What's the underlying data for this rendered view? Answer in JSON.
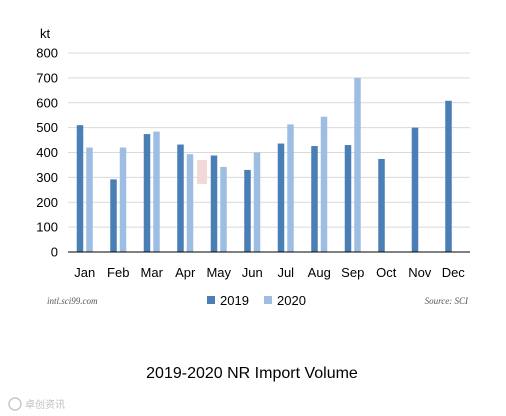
{
  "chart_data": {
    "type": "bar",
    "title": "",
    "caption": "2019-2020 NR Import Volume",
    "unit_label": "kt",
    "xlabel": "",
    "ylabel": "",
    "ylim": [
      0,
      800
    ],
    "yticks": [
      0,
      100,
      200,
      300,
      400,
      500,
      600,
      700,
      800
    ],
    "categories": [
      "Jan",
      "Feb",
      "Mar",
      "Apr",
      "May",
      "Jun",
      "Jul",
      "Aug",
      "Sep",
      "Oct",
      "Nov",
      "Dec"
    ],
    "series": [
      {
        "name": "2019",
        "color": "#4a7fb5",
        "values": [
          510,
          292,
          474,
          432,
          388,
          330,
          436,
          426,
          430,
          374,
          500,
          608
        ]
      },
      {
        "name": "2020",
        "color": "#9dbde3",
        "values": [
          420,
          420,
          484,
          393,
          342,
          400,
          513,
          544,
          700,
          null,
          null,
          null
        ]
      }
    ],
    "grid": true,
    "legend_position": "bottom",
    "site_note": "intl.sci99.com",
    "source_note": "Source: SCI"
  },
  "watermark_text": "卓创资讯"
}
